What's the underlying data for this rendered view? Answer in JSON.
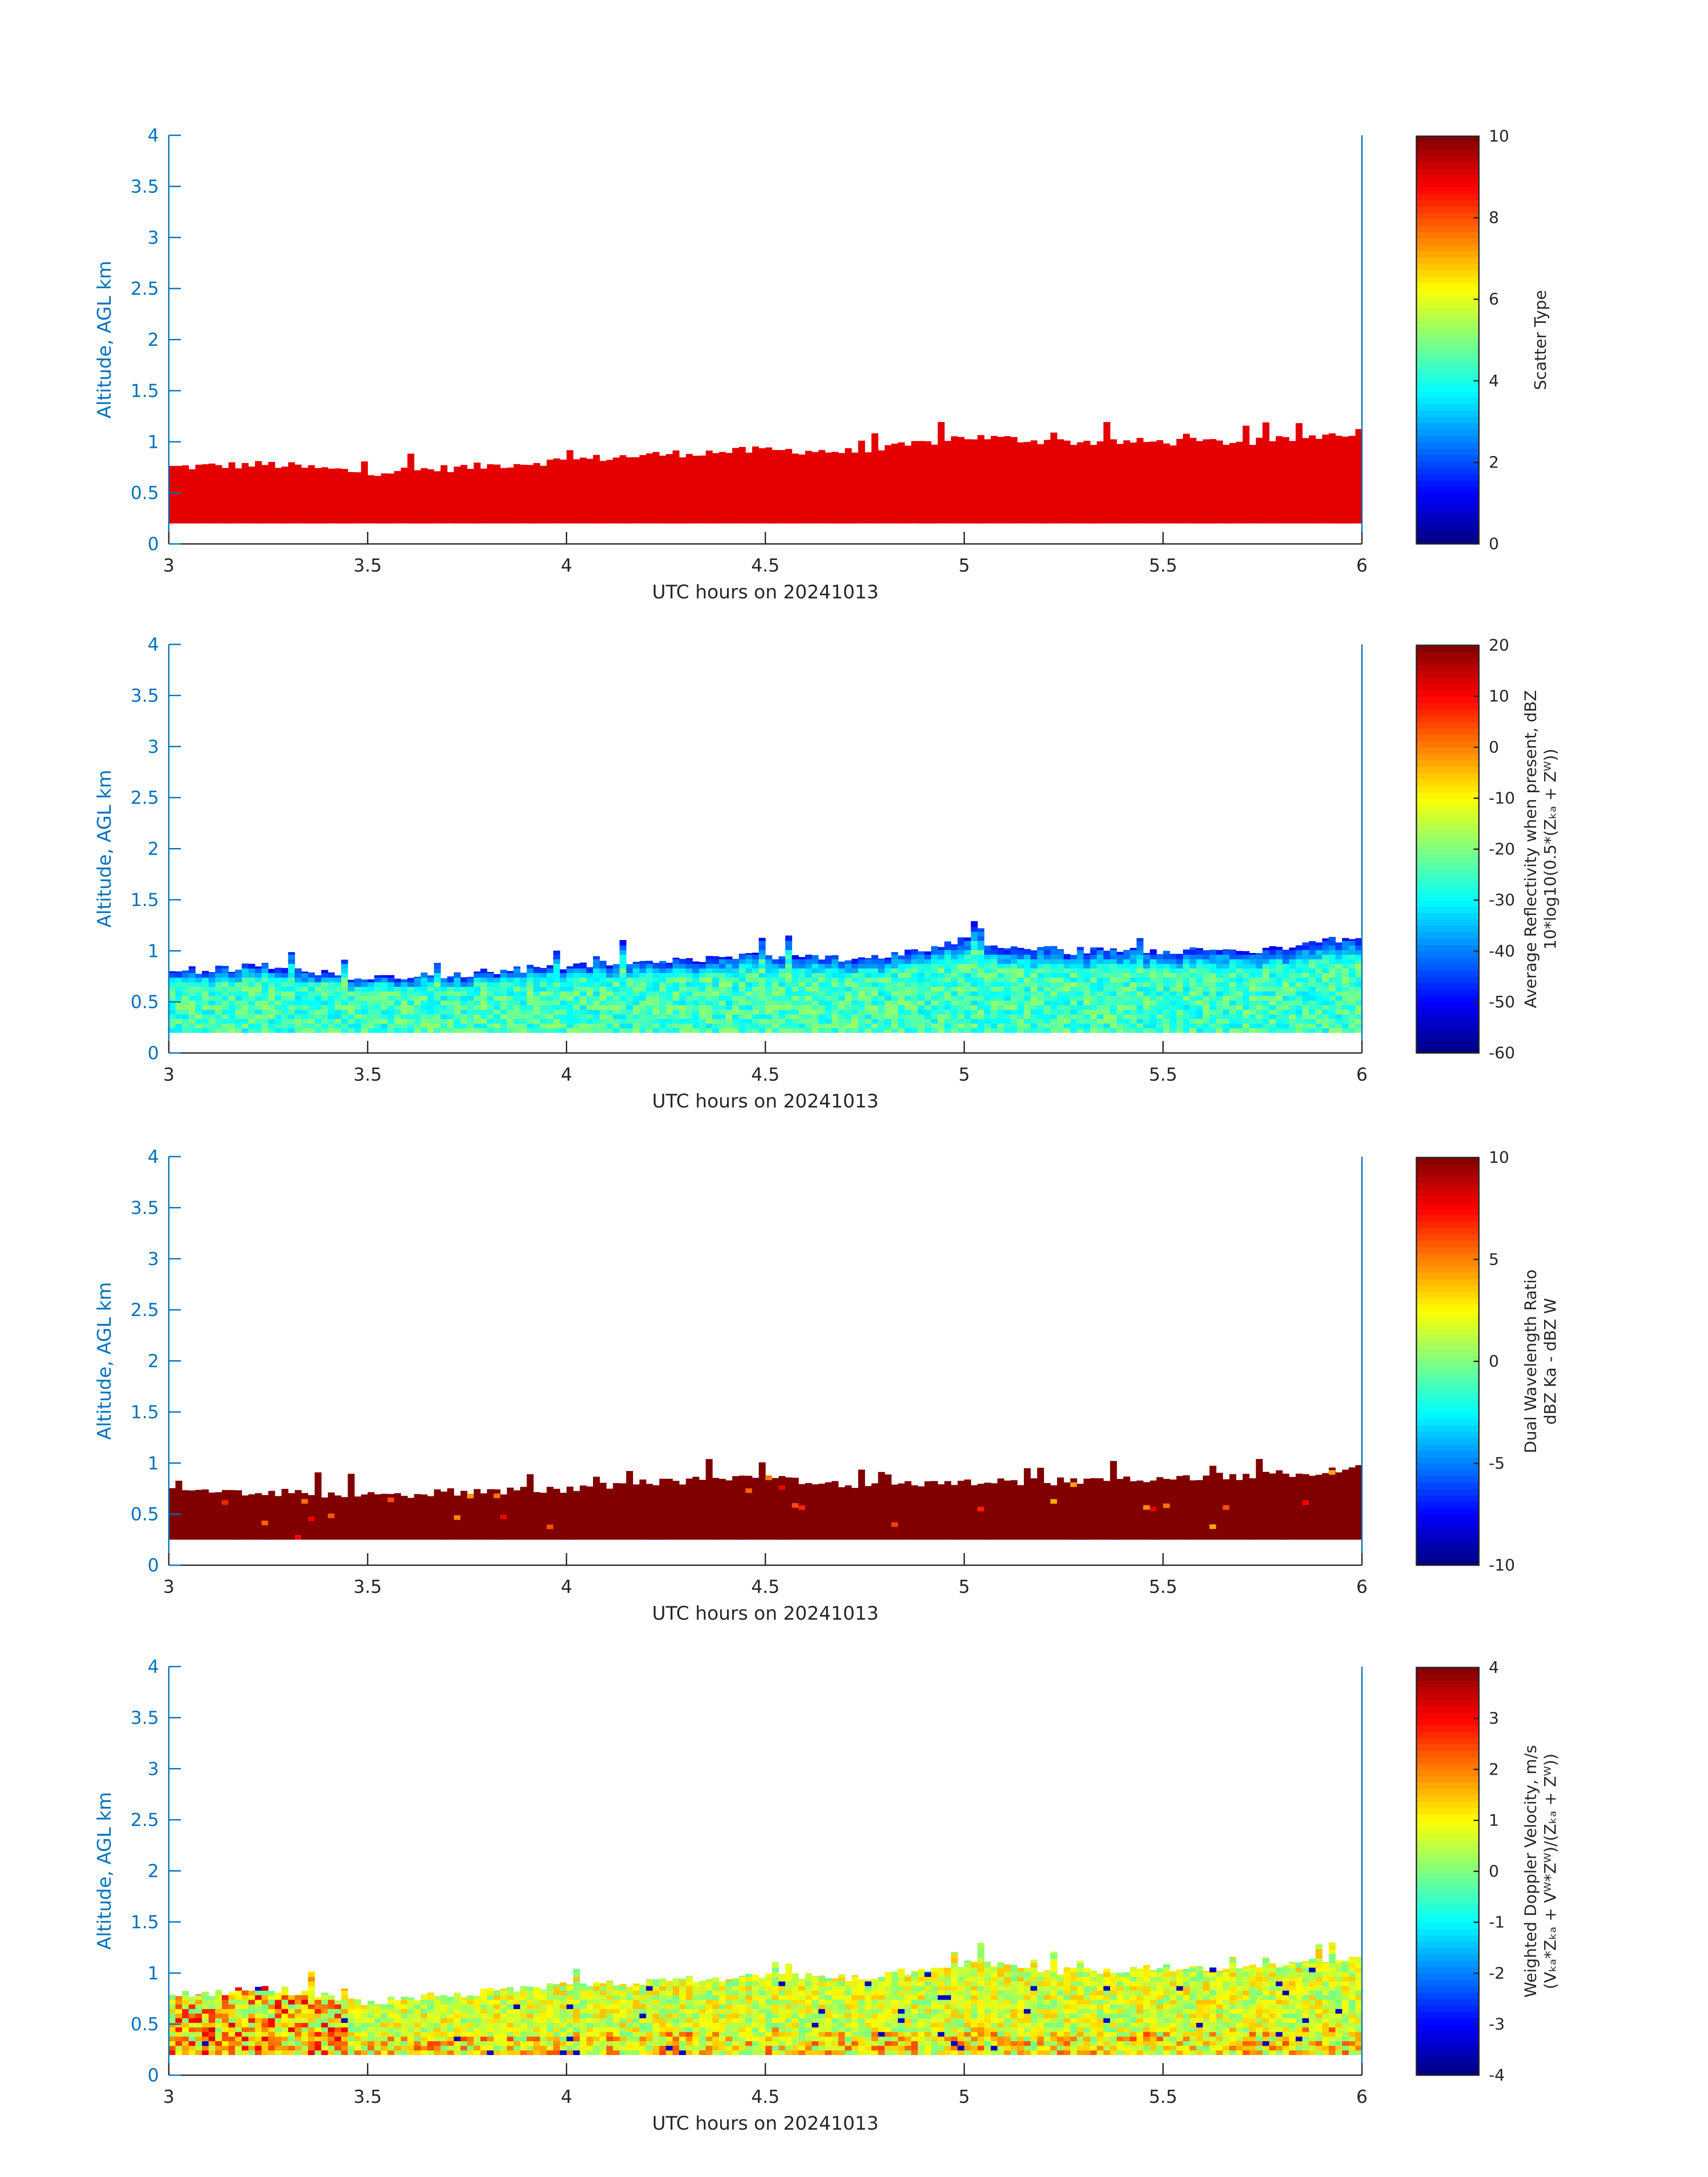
{
  "figure": {
    "panels": [
      {
        "id": "scatter-type",
        "colorbar": {
          "ticks": [
            "10",
            "8",
            "6",
            "4",
            "2",
            "0"
          ],
          "label_lines": [
            "Scatter Type"
          ],
          "min": 0,
          "max": 10
        }
      },
      {
        "id": "reflectivity",
        "colorbar": {
          "ticks": [
            "20",
            "10",
            "0",
            "-10",
            "-20",
            "-30",
            "-40",
            "-50",
            "-60"
          ],
          "label_lines": [
            "Average Reflectivity when present, dBZ",
            "10*log10(0.5*(Zₖₐ + Zᵂ))"
          ],
          "min": -60,
          "max": 20
        }
      },
      {
        "id": "dual-wavelength-ratio",
        "colorbar": {
          "ticks": [
            "10",
            "5",
            "0",
            "-5",
            "-10"
          ],
          "label_lines": [
            "Dual Wavelength Ratio",
            "dBZ Ka - dBZ W"
          ],
          "min": -10,
          "max": 10
        }
      },
      {
        "id": "doppler-velocity",
        "colorbar": {
          "ticks": [
            "4",
            "3",
            "2",
            "1",
            "0",
            "-1",
            "-2",
            "-3",
            "-4"
          ],
          "label_lines": [
            "Weighted Doppler Velocity, m/s",
            "(Vₖₐ*Zₖₐ + Vᵂ*Zᵂ)/(Zₖₐ + Zᵂ))"
          ],
          "min": -4,
          "max": 4
        }
      }
    ],
    "x_ticks": [
      "3",
      "3.5",
      "4",
      "4.5",
      "5",
      "5.5",
      "6"
    ],
    "y_ticks": [
      "0",
      "0.5",
      "1",
      "1.5",
      "2",
      "2.5",
      "3",
      "3.5",
      "4"
    ],
    "xlabel": "UTC hours on 20241013",
    "ylabel": "Altitude, AGL km"
  },
  "chart_data": [
    {
      "type": "heatmap",
      "xlabel": "UTC hours on 20241013",
      "ylabel": "Altitude, AGL km",
      "xlim": [
        3,
        6
      ],
      "ylim": [
        0,
        4
      ],
      "colorbar_label": "Scatter Type",
      "clim": [
        0,
        10
      ],
      "layer_bottom_km": 0.2,
      "cloud_top_x_hours": [
        3.0,
        3.25,
        3.5,
        3.75,
        4.0,
        4.25,
        4.5,
        4.75,
        5.0,
        5.25,
        5.5,
        5.75,
        6.0
      ],
      "cloud_top_km": [
        0.75,
        0.78,
        0.7,
        0.75,
        0.82,
        0.88,
        0.92,
        0.9,
        1.05,
        1.0,
        1.0,
        1.0,
        1.1
      ],
      "dominant_value": 9
    },
    {
      "type": "heatmap",
      "xlabel": "UTC hours on 20241013",
      "ylabel": "Altitude, AGL km",
      "xlim": [
        3,
        6
      ],
      "ylim": [
        0,
        4
      ],
      "colorbar_label": "Average Reflectivity when present, dBZ 10*log10(0.5*(Z_Ka + Z_W))",
      "clim": [
        -60,
        20
      ],
      "layer_bottom_km": 0.2,
      "cloud_top_x_hours": [
        3.0,
        3.25,
        3.5,
        3.75,
        4.0,
        4.25,
        4.5,
        4.75,
        5.0,
        5.25,
        5.5,
        5.75,
        6.0
      ],
      "cloud_top_km": [
        0.8,
        0.85,
        0.72,
        0.78,
        0.85,
        0.9,
        0.95,
        0.92,
        1.1,
        1.0,
        1.0,
        1.0,
        1.15
      ],
      "typical_value_core": -25,
      "typical_value_top": -50
    },
    {
      "type": "heatmap",
      "xlabel": "UTC hours on 20241013",
      "ylabel": "Altitude, AGL km",
      "xlim": [
        3,
        6
      ],
      "ylim": [
        0,
        4
      ],
      "colorbar_label": "Dual Wavelength Ratio dBZ Ka - dBZ W",
      "clim": [
        -10,
        10
      ],
      "layer_bottom_km": 0.25,
      "cloud_top_x_hours": [
        3.0,
        3.25,
        3.5,
        3.75,
        4.0,
        4.25,
        4.5,
        4.75,
        5.0,
        5.25,
        5.5,
        5.75,
        6.0
      ],
      "cloud_top_km": [
        0.72,
        0.72,
        0.68,
        0.72,
        0.75,
        0.82,
        0.85,
        0.78,
        0.82,
        0.82,
        0.85,
        0.88,
        0.95
      ],
      "dominant_value": 10
    },
    {
      "type": "heatmap",
      "xlabel": "UTC hours on 20241013",
      "ylabel": "Altitude, AGL km",
      "xlim": [
        3,
        6
      ],
      "ylim": [
        0,
        4
      ],
      "colorbar_label": "Weighted Doppler Velocity, m/s (V_Ka*Z_Ka + V_W*Z_W)/(Z_Ka + Z_W))",
      "clim": [
        -4,
        4
      ],
      "layer_bottom_km": 0.2,
      "cloud_top_x_hours": [
        3.0,
        3.25,
        3.5,
        3.75,
        4.0,
        4.25,
        4.5,
        4.75,
        5.0,
        5.25,
        5.5,
        5.75,
        6.0
      ],
      "cloud_top_km": [
        0.78,
        0.85,
        0.72,
        0.8,
        0.88,
        0.92,
        0.98,
        0.95,
        1.1,
        1.02,
        1.05,
        1.05,
        1.15
      ],
      "typical_value_core": 0.7
    }
  ]
}
